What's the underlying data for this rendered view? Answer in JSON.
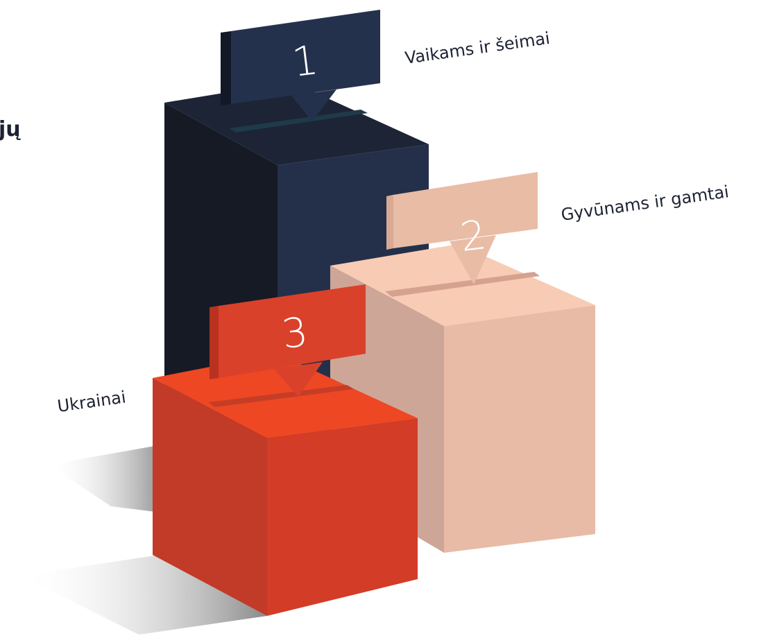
{
  "heading": "jų",
  "items": [
    {
      "rank": 1,
      "label": "Vaikams ir šeimai"
    },
    {
      "rank": 2,
      "label": "Gyvūnams ir gamtai"
    },
    {
      "rank": 3,
      "label": "Ukrainai"
    }
  ]
}
